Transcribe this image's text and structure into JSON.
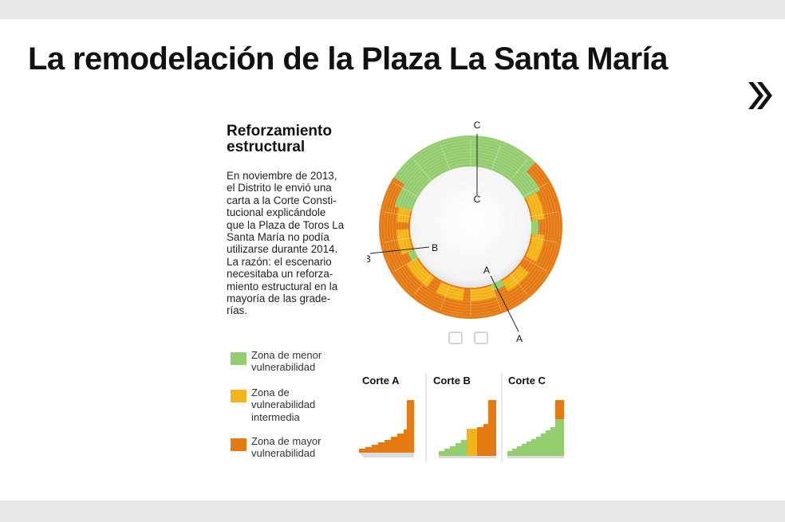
{
  "title": "La remodelación de la Plaza La Santa María",
  "nav": {
    "next_icon": "double-chevron-right"
  },
  "section": {
    "title_lines": [
      "Reforzamiento",
      "estructural"
    ],
    "body_lines": [
      "En noviembre de 2013,",
      "el Distrito le envió una",
      "carta a la Corte Consti-",
      "tucional explicándole",
      "que la Plaza de Toros La",
      "Santa María no podía",
      "utilizarse durante 2014.",
      "La razón: el escenario",
      "necesitaba un reforza-",
      "miento estructural en la",
      "mayoría de las grade-",
      "rías."
    ]
  },
  "colors": {
    "low": "#93cd6f",
    "medium": "#f2b417",
    "high": "#e67a12",
    "background_band": "#e6e6e6"
  },
  "legend": [
    {
      "lines": [
        "Zona de menor",
        "vulnerabilidad"
      ],
      "color": "#93cd6f"
    },
    {
      "lines": [
        "Zona de",
        "vulnerabilidad",
        "intermedia"
      ],
      "color": "#f2b417"
    },
    {
      "lines": [
        "Zona de mayor",
        "vulnerabilidad"
      ],
      "color": "#e67a12"
    }
  ],
  "plan_labels": {
    "c_outer": "C",
    "c_inner": "C",
    "b_outer": "B",
    "b_inner": "B",
    "a_inner": "A",
    "a_outer": "A"
  },
  "sections": [
    {
      "label": "Corte A"
    },
    {
      "label": "Corte B"
    },
    {
      "label": "Corte C"
    }
  ]
}
